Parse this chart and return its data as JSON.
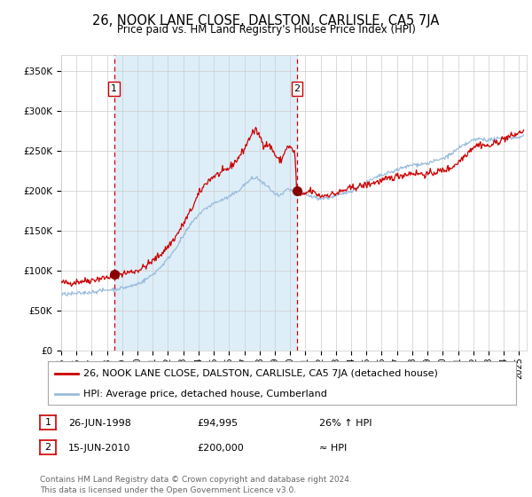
{
  "title": "26, NOOK LANE CLOSE, DALSTON, CARLISLE, CA5 7JA",
  "subtitle": "Price paid vs. HM Land Registry's House Price Index (HPI)",
  "legend_line1": "26, NOOK LANE CLOSE, DALSTON, CARLISLE, CA5 7JA (detached house)",
  "legend_line2": "HPI: Average price, detached house, Cumberland",
  "annotation1_date": "26-JUN-1998",
  "annotation1_price": "£94,995",
  "annotation1_hpi": "26% ↑ HPI",
  "annotation2_date": "15-JUN-2010",
  "annotation2_price": "£200,000",
  "annotation2_hpi": "≈ HPI",
  "footer": "Contains HM Land Registry data © Crown copyright and database right 2024.\nThis data is licensed under the Open Government Licence v3.0.",
  "red_line_color": "#cc0000",
  "blue_line_color": "#99bbdd",
  "shade_color": "#ddeef8",
  "plot_bg_color": "#ffffff",
  "vline_color": "#cc0000",
  "marker_color": "#880000",
  "grid_color": "#cccccc",
  "ylim_min": 0,
  "ylim_max": 370000,
  "yticks": [
    0,
    50000,
    100000,
    150000,
    200000,
    250000,
    300000,
    350000
  ],
  "ytick_labels": [
    "£0",
    "£50K",
    "£100K",
    "£150K",
    "£200K",
    "£250K",
    "£300K",
    "£350K"
  ],
  "xlim_min": 1995.0,
  "xlim_max": 2025.5,
  "sale1_x": 1998.47,
  "sale1_y": 94995,
  "sale2_x": 2010.45,
  "sale2_y": 200000,
  "title_fontsize": 10.5,
  "subtitle_fontsize": 8.5,
  "tick_fontsize": 7.5,
  "legend_fontsize": 8,
  "annot_fontsize": 8,
  "footer_fontsize": 6.5
}
